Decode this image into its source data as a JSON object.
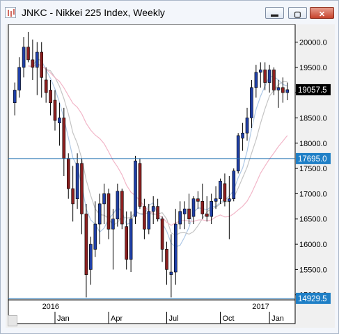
{
  "window": {
    "title": "JNKC - Nikkei 225 Index, Weekly",
    "buttons": {
      "minimize": "▬",
      "maximize": "▢",
      "close": "✕"
    }
  },
  "chart_data": {
    "type": "candlestick",
    "symbol": "JNKC",
    "instrument": "Nikkei 225 Index",
    "interval": "Weekly",
    "ylim": [
      14900,
      20350
    ],
    "y_ticks": [
      "20000.0",
      "19500.0",
      "19000.0",
      "18500.0",
      "18000.0",
      "17500.0",
      "17000.0",
      "16500.0",
      "16000.0",
      "15500.0",
      "15000.0"
    ],
    "year_labels": [
      {
        "text": "2016",
        "index": 8
      },
      {
        "text": "2017",
        "index": 55
      }
    ],
    "month_labels": [
      {
        "text": "Jan",
        "index": 9
      },
      {
        "text": "Apr",
        "index": 21
      },
      {
        "text": "Jul",
        "index": 34
      },
      {
        "text": "Oct",
        "index": 46
      },
      {
        "text": "Jan",
        "index": 57
      }
    ],
    "price_tags": [
      {
        "text": "19057.5",
        "value": 19057.5,
        "style": "dark",
        "line": false
      },
      {
        "text": "17695.0",
        "value": 17695.0,
        "style": "blue",
        "line": true
      },
      {
        "text": "14929.5",
        "value": 14929.5,
        "style": "blue",
        "line": true
      }
    ],
    "grid": false,
    "colors": {
      "up": "#1f3fa6",
      "down": "#8b1f1f",
      "bg": "#ffffff",
      "hline": "#1f6fb0",
      "tag_dark": "#000000",
      "tag_blue": "#1f7fc6",
      "ma_fast": "#aec8e6",
      "ma_mid": "#c4c4c4",
      "ma_slow": "#f2b6c8"
    },
    "candles": [
      [
        18800,
        19200,
        18550,
        19050
      ],
      [
        19050,
        19700,
        18900,
        19500
      ],
      [
        19500,
        20100,
        19300,
        19900
      ],
      [
        19900,
        20200,
        19600,
        19650
      ],
      [
        19650,
        20050,
        19250,
        19500
      ],
      [
        19500,
        20000,
        18950,
        19800
      ],
      [
        19800,
        20000,
        18900,
        19300
      ],
      [
        19250,
        19500,
        18800,
        19000
      ],
      [
        19050,
        19250,
        18550,
        18800
      ],
      [
        18850,
        19050,
        18250,
        18450
      ],
      [
        18400,
        18800,
        17950,
        18500
      ],
      [
        18500,
        18700,
        17350,
        17700
      ],
      [
        17700,
        17800,
        16900,
        17100
      ],
      [
        17100,
        17550,
        16450,
        16800
      ],
      [
        16900,
        17800,
        16700,
        17600
      ],
      [
        17600,
        17700,
        16200,
        16600
      ],
      [
        16600,
        16800,
        14950,
        15400
      ],
      [
        15500,
        16150,
        15200,
        16000
      ],
      [
        15900,
        16850,
        15750,
        16400
      ],
      [
        16400,
        17000,
        16000,
        16800
      ],
      [
        16800,
        17200,
        16400,
        17000
      ],
      [
        17000,
        17100,
        16100,
        16300
      ],
      [
        16300,
        16700,
        15500,
        16500
      ],
      [
        16500,
        17200,
        16350,
        17050
      ],
      [
        17050,
        17100,
        16300,
        16400
      ],
      [
        16350,
        16650,
        15500,
        15700
      ],
      [
        15700,
        16650,
        15450,
        16500
      ],
      [
        16550,
        17750,
        16400,
        17650
      ],
      [
        17600,
        17700,
        16700,
        16750
      ],
      [
        16750,
        16900,
        16100,
        16300
      ],
      [
        16300,
        16800,
        16200,
        16650
      ],
      [
        16650,
        16950,
        16400,
        16750
      ],
      [
        16750,
        16900,
        16450,
        16500
      ],
      [
        16500,
        16550,
        15650,
        15900
      ],
      [
        15900,
        16050,
        15200,
        15500
      ],
      [
        15400,
        16200,
        14950,
        15450
      ],
      [
        15450,
        16700,
        15200,
        16400
      ],
      [
        16400,
        16850,
        16300,
        16650
      ],
      [
        16600,
        16850,
        16300,
        16700
      ],
      [
        16700,
        17000,
        16400,
        16500
      ],
      [
        16550,
        16950,
        16400,
        16900
      ],
      [
        16900,
        17050,
        16700,
        16850
      ],
      [
        16850,
        17200,
        16500,
        16600
      ],
      [
        16600,
        16950,
        16450,
        16550
      ],
      [
        16550,
        17000,
        16400,
        16850
      ],
      [
        16850,
        17150,
        16700,
        16900
      ],
      [
        16900,
        17300,
        16800,
        17250
      ],
      [
        17200,
        17400,
        16750,
        16850
      ],
      [
        16850,
        17350,
        16100,
        16900
      ],
      [
        16900,
        17500,
        16850,
        17450
      ],
      [
        17450,
        18200,
        17400,
        18150
      ],
      [
        18100,
        18400,
        17850,
        18200
      ],
      [
        18200,
        18700,
        18050,
        18500
      ],
      [
        18500,
        19250,
        18300,
        19100
      ],
      [
        19100,
        19550,
        18900,
        19400
      ],
      [
        19400,
        19600,
        19100,
        19450
      ],
      [
        19450,
        19600,
        19050,
        19200
      ],
      [
        19200,
        19550,
        19000,
        19450
      ],
      [
        19450,
        19500,
        18950,
        19050
      ],
      [
        19050,
        19250,
        18700,
        19100
      ],
      [
        19100,
        19300,
        18800,
        19000
      ],
      [
        19000,
        19200,
        18850,
        19057.5
      ]
    ]
  }
}
